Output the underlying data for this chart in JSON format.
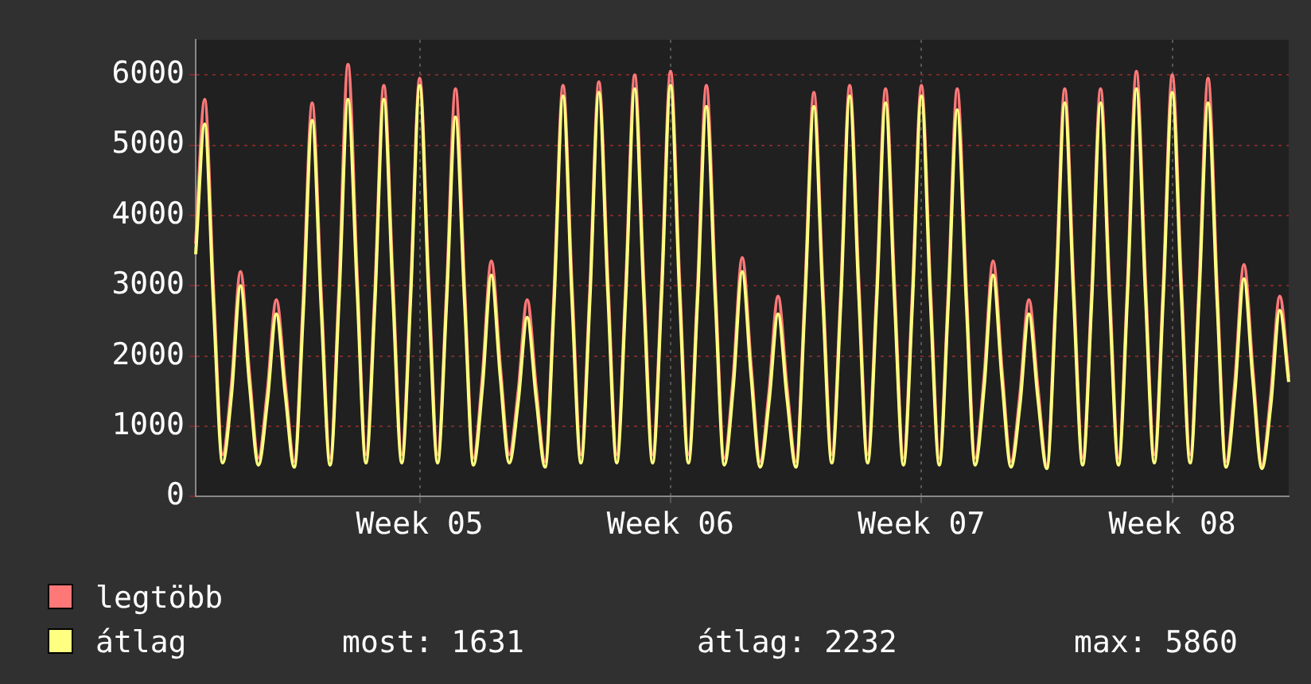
{
  "chart_data": {
    "type": "line",
    "categories": [
      null,
      null,
      null,
      null,
      null,
      null,
      null,
      null,
      null,
      null,
      null,
      null,
      null,
      null,
      null,
      null,
      null,
      null,
      null,
      null,
      null,
      null,
      null,
      null,
      null,
      "Week 05",
      null,
      null,
      null,
      null,
      null,
      null,
      null,
      null,
      null,
      null,
      null,
      null,
      null,
      null,
      null,
      null,
      null,
      null,
      null,
      null,
      null,
      null,
      null,
      null,
      null,
      null,
      null,
      "Week 06",
      null,
      null,
      null,
      null,
      null,
      null,
      null,
      null,
      null,
      null,
      null,
      null,
      null,
      null,
      null,
      null,
      null,
      null,
      null,
      null,
      null,
      null,
      null,
      null,
      null,
      null,
      null,
      "Week 07",
      null,
      null,
      null,
      null,
      null,
      null,
      null,
      null,
      null,
      null,
      null,
      null,
      null,
      null,
      null,
      null,
      null,
      null,
      null,
      null,
      null,
      null,
      null,
      null,
      null,
      null,
      null,
      "Week 08",
      null,
      null,
      null,
      null,
      null,
      null,
      null,
      null,
      null,
      null,
      null,
      null,
      null
    ],
    "series": [
      {
        "name": "legtöbb",
        "color": "#ff7878",
        "values": [
          3600,
          5650,
          2900,
          600,
          1600,
          3200,
          1750,
          550,
          1500,
          2800,
          1600,
          500,
          2800,
          5600,
          2900,
          550,
          3000,
          6150,
          3200,
          600,
          2900,
          5850,
          3100,
          600,
          3000,
          5950,
          3100,
          600,
          2900,
          5800,
          3000,
          550,
          1700,
          3350,
          1850,
          600,
          1500,
          2800,
          1550,
          500,
          2900,
          5850,
          3000,
          600,
          2950,
          5900,
          3100,
          600,
          3000,
          6000,
          3100,
          600,
          3000,
          6050,
          3100,
          600,
          2900,
          5850,
          3000,
          550,
          1700,
          3400,
          1850,
          500,
          1500,
          2850,
          1550,
          500,
          2900,
          5750,
          3000,
          600,
          2900,
          5850,
          3100,
          600,
          2900,
          5800,
          3000,
          550,
          2900,
          5850,
          3000,
          550,
          2900,
          5800,
          3000,
          550,
          1700,
          3350,
          1800,
          500,
          1450,
          2800,
          1550,
          450,
          2900,
          5800,
          3000,
          550,
          2900,
          5800,
          3000,
          550,
          3000,
          6050,
          3100,
          600,
          3000,
          6000,
          3100,
          600,
          3000,
          5950,
          3000,
          500,
          1650,
          3300,
          1800,
          450,
          1450,
          2850,
          1700
        ]
      },
      {
        "name": "átlag",
        "color": "#ffff80",
        "values": [
          3450,
          5300,
          2700,
          480,
          1450,
          3000,
          1600,
          450,
          1350,
          2600,
          1450,
          420,
          2600,
          5350,
          2700,
          450,
          2800,
          5650,
          3000,
          480,
          2750,
          5650,
          2900,
          480,
          2850,
          5850,
          2900,
          480,
          2750,
          5400,
          2800,
          450,
          1550,
          3150,
          1700,
          480,
          1350,
          2550,
          1400,
          420,
          2750,
          5700,
          2800,
          480,
          2800,
          5750,
          2900,
          480,
          2850,
          5800,
          2900,
          480,
          2850,
          5850,
          2900,
          480,
          2750,
          5550,
          2800,
          450,
          1550,
          3200,
          1700,
          420,
          1350,
          2600,
          1400,
          420,
          2750,
          5550,
          2800,
          480,
          2750,
          5700,
          2900,
          480,
          2750,
          5600,
          2800,
          450,
          2750,
          5700,
          2800,
          450,
          2750,
          5500,
          2800,
          450,
          1550,
          3150,
          1650,
          420,
          1300,
          2600,
          1400,
          400,
          2750,
          5600,
          2800,
          450,
          2750,
          5600,
          2800,
          450,
          2850,
          5800,
          2900,
          480,
          2850,
          5750,
          2900,
          480,
          2850,
          5600,
          2800,
          420,
          1500,
          3100,
          1650,
          400,
          1300,
          2650,
          1631
        ]
      }
    ],
    "ylim": [
      0,
      6500
    ],
    "yticks": [
      0,
      1000,
      2000,
      3000,
      4000,
      5000,
      6000
    ],
    "grid": true,
    "legend": "bottom left",
    "marker": "none",
    "line_style": "solid",
    "annotations": [
      "most: 1631",
      "átlag: 2232",
      "max: 5860"
    ]
  }
}
